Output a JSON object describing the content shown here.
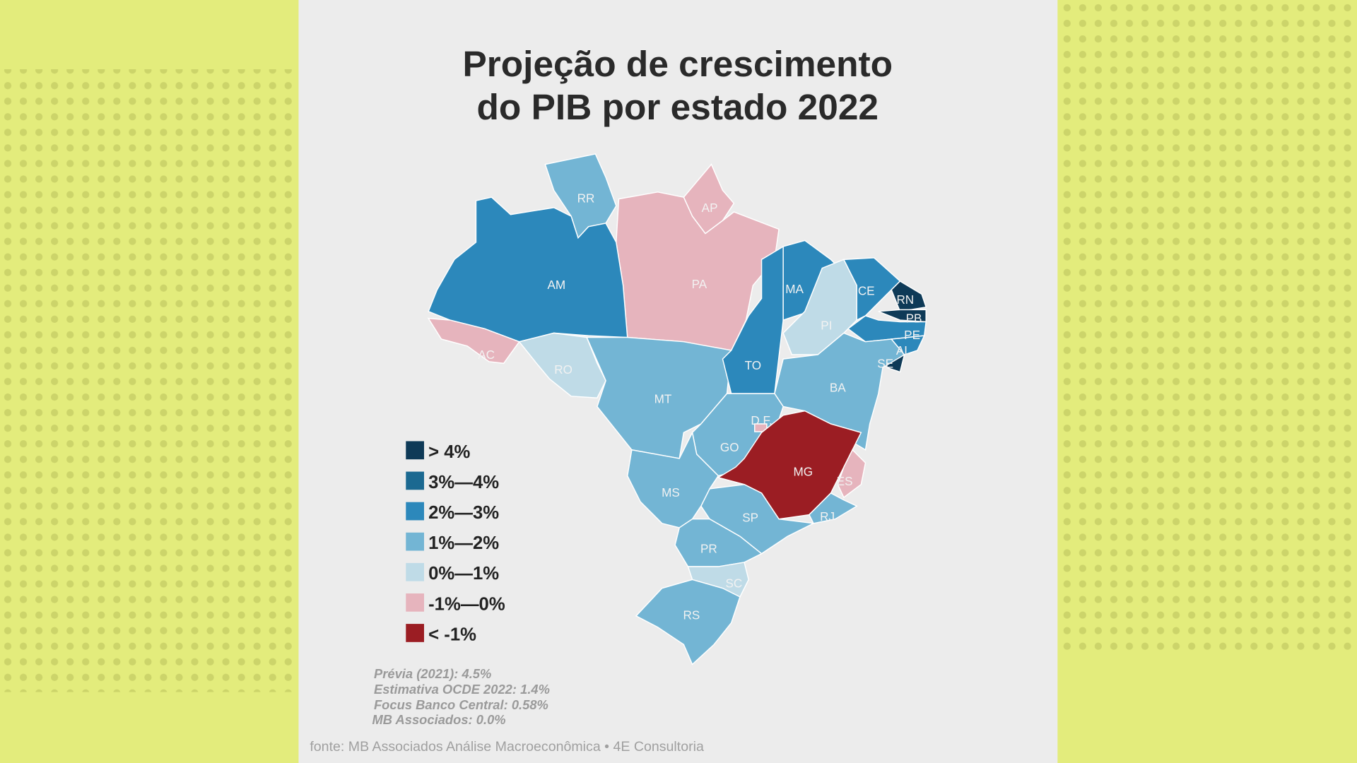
{
  "chart_data": {
    "type": "choropleth-map",
    "title_lines": [
      "Projeção de crescimento",
      "do PIB por estado 2022"
    ],
    "legend": [
      {
        "label": "> 4%",
        "color": "#0e3a57"
      },
      {
        "label": "3%—4%",
        "color": "#1b6991"
      },
      {
        "label": "2%—3%",
        "color": "#2c88bb"
      },
      {
        "label": "1%—2%",
        "color": "#73b5d4"
      },
      {
        "label": "0%—1%",
        "color": "#bfdbe7"
      },
      {
        "label": "-1%—0%",
        "color": "#e6b4bd"
      },
      {
        "label": "< -1%",
        "color": "#9b1d23"
      }
    ],
    "states": [
      {
        "code": "RR",
        "category": "1%—2%"
      },
      {
        "code": "AP",
        "category": "-1%—0%"
      },
      {
        "code": "PA",
        "category": "-1%—0%"
      },
      {
        "code": "AM",
        "category": "2%—3%"
      },
      {
        "code": "AC",
        "category": "-1%—0%"
      },
      {
        "code": "RO",
        "category": "0%—1%"
      },
      {
        "code": "MT",
        "category": "1%—2%"
      },
      {
        "code": "TO",
        "category": "2%—3%"
      },
      {
        "code": "MA",
        "category": "2%—3%"
      },
      {
        "code": "PI",
        "category": "0%—1%"
      },
      {
        "code": "CE",
        "category": "2%—3%"
      },
      {
        "code": "RN",
        "category": "> 4%"
      },
      {
        "code": "PB",
        "category": "> 4%"
      },
      {
        "code": "PE",
        "category": "2%—3%"
      },
      {
        "code": "AL",
        "category": "2%—3%"
      },
      {
        "code": "SE",
        "category": "> 4%"
      },
      {
        "code": "BA",
        "category": "1%—2%"
      },
      {
        "code": "GO",
        "category": "1%—2%"
      },
      {
        "code": "D.F.",
        "category": "-1%—0%"
      },
      {
        "code": "MG",
        "category": "< -1%"
      },
      {
        "code": "ES",
        "category": "-1%—0%"
      },
      {
        "code": "RJ",
        "category": "1%—2%"
      },
      {
        "code": "SP",
        "category": "1%—2%"
      },
      {
        "code": "MS",
        "category": "1%—2%"
      },
      {
        "code": "PR",
        "category": "1%—2%"
      },
      {
        "code": "SC",
        "category": "0%—1%"
      },
      {
        "code": "RS",
        "category": "1%—2%"
      }
    ],
    "notes": [
      "Prévia (2021): 4.5%",
      "Estimativa OCDE 2022: 1.4%",
      "Focus Banco Central: 0.58%",
      "MB Associados: 0.0%"
    ],
    "source": "fonte: MB Associados Análise Macroeconômica  • 4E Consultoria"
  }
}
